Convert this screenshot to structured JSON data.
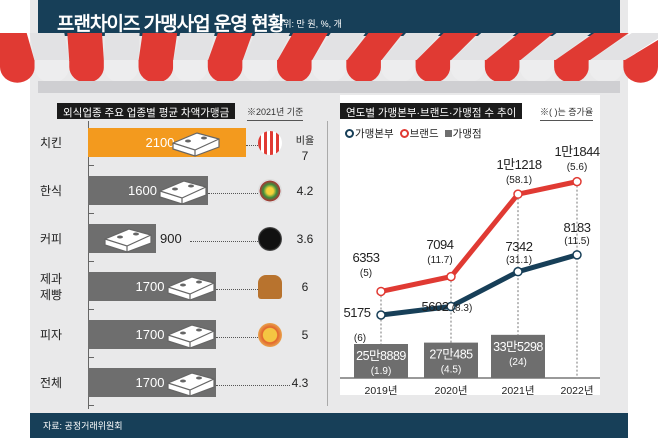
{
  "header": {
    "title": "프랜차이즈 가맹사업 운영 현황",
    "unit": "단위: 만 원, %, 개"
  },
  "left_panel": {
    "title": "외식업종 주요 업종별 평균 차액가맹금",
    "note": "※2021년 기준",
    "ratio_label": "비율",
    "rows": [
      {
        "category": "치킨",
        "value": 2100,
        "value_label": "2100",
        "ratio": "7",
        "icon": "fried-chicken-icon",
        "highlight": true
      },
      {
        "category": "한식",
        "value": 1600,
        "value_label": "1600",
        "ratio": "4.2",
        "icon": "bibimbap-icon"
      },
      {
        "category": "커피",
        "value": 900,
        "value_label": "900",
        "ratio": "3.6",
        "icon": "coffee-icon"
      },
      {
        "category": "제과\n제빵",
        "value": 1700,
        "value_label": "1700",
        "ratio": "6",
        "icon": "bread-icon"
      },
      {
        "category": "피자",
        "value": 1700,
        "value_label": "1700",
        "ratio": "5",
        "icon": "pizza-icon"
      },
      {
        "category": "전체",
        "value": 1700,
        "value_label": "1700",
        "ratio": "4.3",
        "icon": null
      }
    ]
  },
  "right_panel": {
    "title": "연도별 가맹본부·브랜드·가맹점 수 추이",
    "note": "※( )는 증가율"
  },
  "chart_data": {
    "type": "line",
    "x": [
      "2019년",
      "2020년",
      "2021년",
      "2022년"
    ],
    "series": [
      {
        "name": "가맹본부",
        "color": "#173f58",
        "values": [
          5175,
          5602,
          7342,
          8183
        ],
        "labels": [
          "5175",
          "5602",
          "7342",
          "8183"
        ],
        "growth": [
          "(6)",
          "(8.3)",
          "(31.1)",
          "(11.5)"
        ]
      },
      {
        "name": "브랜드",
        "color": "#e03a33",
        "values": [
          6353,
          7094,
          11218,
          11844
        ],
        "labels": [
          "6353",
          "7094",
          "1만1218",
          "1만1844"
        ],
        "growth": [
          "(5)",
          "(11.7)",
          "(58.1)",
          "(5.6)"
        ]
      },
      {
        "name": "가맹점",
        "type": "bar",
        "color": "#6e6e6e",
        "values": [
          258889,
          270485,
          335298,
          null
        ],
        "labels": [
          "25만8889",
          "27만485",
          "33만5298",
          ""
        ],
        "growth": [
          "(1.9)",
          "(4.5)",
          "(24)",
          ""
        ]
      }
    ]
  },
  "colors": {
    "navy": "#173f58",
    "red": "#e03a33",
    "orange": "#f39a1e",
    "gray": "#6e6e6e"
  },
  "footer": {
    "source": "자료: 공정거래위원회"
  }
}
